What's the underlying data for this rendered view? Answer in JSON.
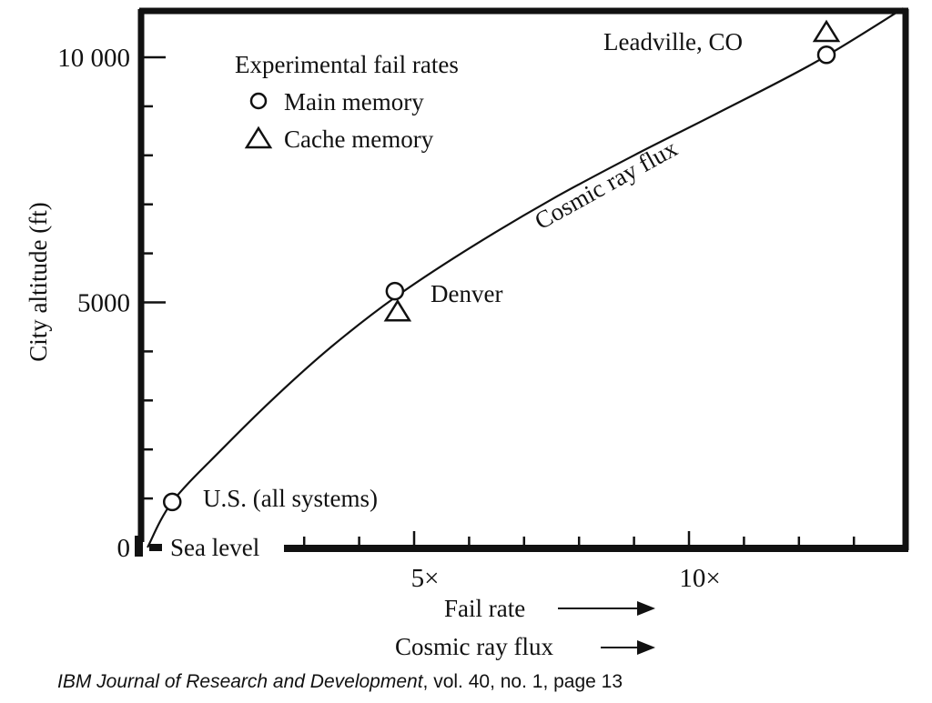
{
  "chart_data": {
    "type": "scatter",
    "ylabel": "City altitude (ft)",
    "xlabel_lines": [
      "Fail rate",
      "Cosmic ray flux"
    ],
    "xlim": [
      0,
      14
    ],
    "ylim": [
      0,
      11000
    ],
    "y_ticks": [
      {
        "value": 0,
        "label": "0"
      },
      {
        "value": 5000,
        "label": "5000"
      },
      {
        "value": 10000,
        "label": "10 000"
      }
    ],
    "y_minor_step": 1000,
    "x_ticks": [
      {
        "value": 5,
        "label": "5×"
      },
      {
        "value": 10,
        "label": "10×"
      }
    ],
    "x_minor_step": 1,
    "grid": false,
    "legend": {
      "title": "Experimental fail rates",
      "placement": "top-left",
      "entries": [
        {
          "marker": "circle",
          "label": "Main memory"
        },
        {
          "marker": "triangle",
          "label": "Cache memory"
        }
      ]
    },
    "series": [
      {
        "name": "Main memory",
        "marker": "circle",
        "points": [
          {
            "x": 0.6,
            "y": 930
          },
          {
            "x": 4.65,
            "y": 5230
          },
          {
            "x": 12.5,
            "y": 10050
          }
        ]
      },
      {
        "name": "Cache memory",
        "marker": "triangle",
        "points": [
          {
            "x": 4.7,
            "y": 4820
          },
          {
            "x": 12.5,
            "y": 10520
          }
        ]
      }
    ],
    "curve": {
      "label": "Cosmic ray flux",
      "points": [
        {
          "x": 0.15,
          "y": 0
        },
        {
          "x": 0.6,
          "y": 930
        },
        {
          "x": 1.5,
          "y": 2000
        },
        {
          "x": 2.5,
          "y": 3100
        },
        {
          "x": 3.5,
          "y": 4100
        },
        {
          "x": 4.65,
          "y": 5100
        },
        {
          "x": 6,
          "y": 6100
        },
        {
          "x": 7.5,
          "y": 7100
        },
        {
          "x": 9,
          "y": 8000
        },
        {
          "x": 10.5,
          "y": 8850
        },
        {
          "x": 12.3,
          "y": 9900
        },
        {
          "x": 13.9,
          "y": 11000
        }
      ]
    },
    "annotations": [
      {
        "text": "Leadville, CO"
      },
      {
        "text": "Denver"
      },
      {
        "text": "U.S. (all systems)"
      },
      {
        "text": "Sea level"
      }
    ]
  },
  "caption": {
    "journal": "IBM Journal of Research and Development",
    "rest": ", vol. 40, no. 1, page 13"
  }
}
